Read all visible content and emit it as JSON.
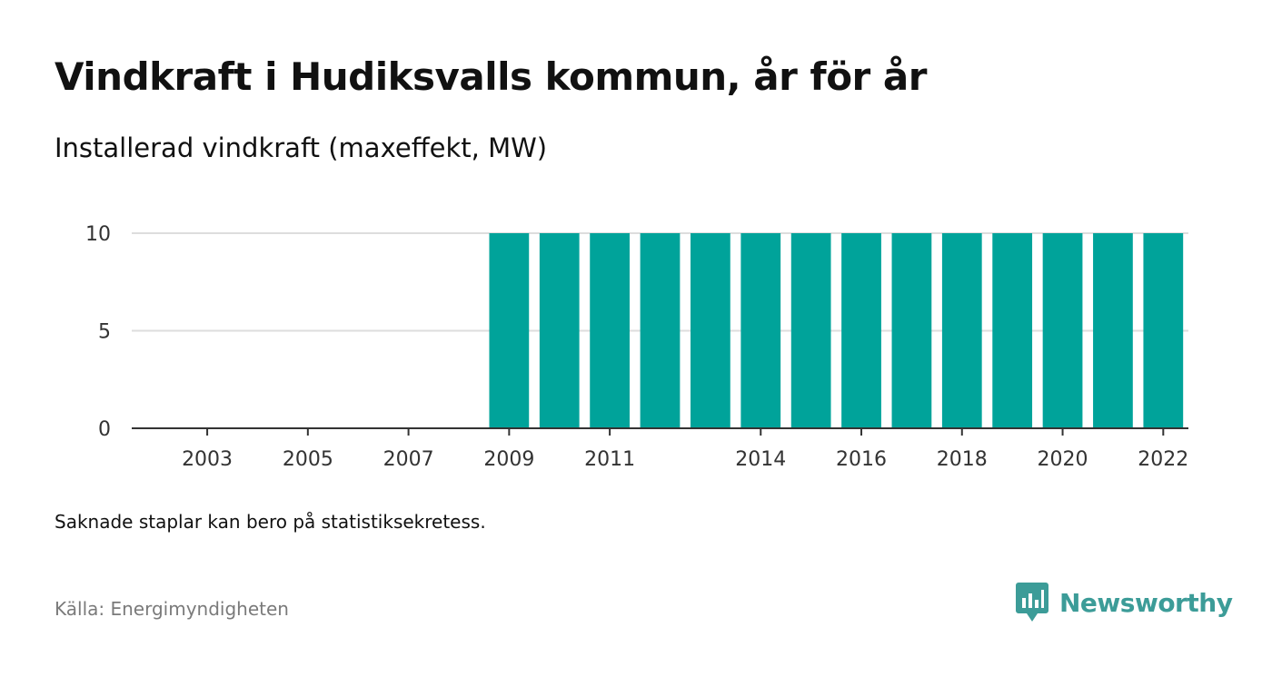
{
  "header": {
    "title": "Vindkraft i Hudiksvalls kommun, år för år",
    "subtitle": "Installerad vindkraft (maxeffekt, MW)"
  },
  "footer": {
    "note": "Saknade staplar kan bero på statistiksekretess.",
    "source": "Källa: Energimyndigheten",
    "brand": "Newsworthy",
    "brand_icon": "newsworthy-logo-icon"
  },
  "colors": {
    "bar": "#00a39a",
    "brand": "#3c9c98",
    "gridline": "#dddddd",
    "axis": "#333333",
    "source_text": "#7a7a7a"
  },
  "chart_data": {
    "type": "bar",
    "title": "Vindkraft i Hudiksvalls kommun, år för år",
    "subtitle": "Installerad vindkraft (maxeffekt, MW)",
    "xlabel": "",
    "ylabel": "",
    "categories": [
      "2002",
      "2003",
      "2004",
      "2005",
      "2006",
      "2007",
      "2008",
      "2009",
      "2010",
      "2011",
      "2012",
      "2013",
      "2014",
      "2015",
      "2016",
      "2017",
      "2018",
      "2019",
      "2020",
      "2021",
      "2022"
    ],
    "values": [
      0,
      0,
      0,
      0,
      0,
      0,
      0,
      10,
      10,
      10,
      10,
      10,
      10,
      10,
      10,
      10,
      10,
      10,
      10,
      10,
      10
    ],
    "x_tick_labels": [
      "2003",
      "2005",
      "2007",
      "2009",
      "2011",
      "2014",
      "2016",
      "2018",
      "2020",
      "2022"
    ],
    "y_ticks": [
      0,
      5,
      10
    ],
    "ylim": [
      0,
      10
    ],
    "grid": true,
    "legend": "none"
  }
}
